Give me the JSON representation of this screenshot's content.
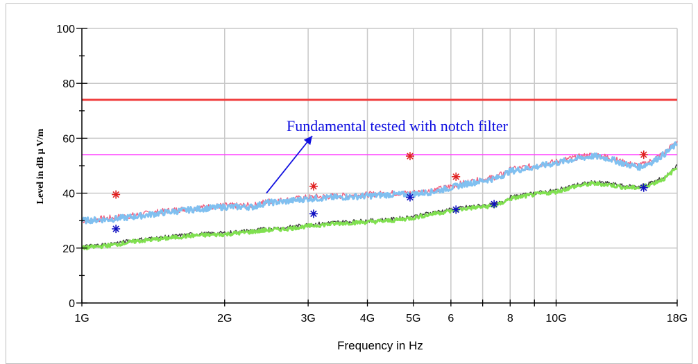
{
  "chart_data": {
    "type": "line",
    "xlabel": "Frequency in Hz",
    "ylabel": "Level in dB µ V/m",
    "x_scale": "log",
    "x_unit": "GHz",
    "xlim": [
      1,
      18
    ],
    "ylim": [
      0,
      100
    ],
    "grid": true,
    "x_ticks": [
      {
        "value": 1,
        "label": "1G"
      },
      {
        "value": 2,
        "label": "2G"
      },
      {
        "value": 3,
        "label": "3G"
      },
      {
        "value": 4,
        "label": "4G"
      },
      {
        "value": 5,
        "label": "5G"
      },
      {
        "value": 6,
        "label": "6"
      },
      {
        "value": 7,
        "label": ""
      },
      {
        "value": 8,
        "label": "8"
      },
      {
        "value": 9,
        "label": ""
      },
      {
        "value": 10,
        "label": "10G"
      },
      {
        "value": 18,
        "label": "18G"
      }
    ],
    "y_ticks": [
      0,
      20,
      40,
      60,
      80,
      100
    ],
    "annotation": {
      "text": "Fundamental tested with notch filter",
      "arrow_to_x": 2.45,
      "arrow_to_y": 40
    },
    "limit_lines": [
      {
        "y": 74,
        "color": "#f04040"
      },
      {
        "y": 54,
        "color": "#ff40ff"
      }
    ],
    "series": [
      {
        "role": "peak-hz",
        "color": "#f06080",
        "x": [
          1,
          1.15,
          1.3,
          1.5,
          1.7,
          2,
          2.3,
          2.45,
          2.7,
          3,
          3.5,
          4,
          4.5,
          4.9,
          5.5,
          6,
          6.5,
          7,
          7.5,
          8,
          9,
          10,
          11,
          12,
          13,
          14,
          15,
          16,
          17,
          18
        ],
        "y": [
          30,
          31,
          32,
          33.5,
          34.5,
          35.5,
          35.5,
          37,
          37.5,
          38.5,
          39,
          39.5,
          40,
          40,
          41,
          42.5,
          44,
          45,
          46,
          48.5,
          50,
          51.5,
          53,
          54,
          53,
          51,
          50,
          52,
          55,
          59
        ]
      },
      {
        "role": "peak-vt",
        "color": "#80c0f0",
        "x": [
          1,
          1.15,
          1.3,
          1.5,
          1.7,
          2,
          2.3,
          2.45,
          2.7,
          3,
          3.5,
          4,
          4.5,
          4.9,
          5.5,
          6,
          6.5,
          7,
          7.5,
          8,
          9,
          10,
          11,
          12,
          13,
          14,
          15,
          16,
          17,
          18
        ],
        "y": [
          30,
          30.5,
          31.5,
          33,
          34,
          35,
          35,
          36.5,
          37,
          38,
          38.5,
          39,
          39.5,
          39.5,
          40.5,
          42,
          43.5,
          44.5,
          45.5,
          48,
          49.5,
          51,
          52.5,
          53.5,
          52.5,
          50.5,
          49.5,
          51.5,
          54.5,
          58
        ]
      },
      {
        "role": "avg-hz",
        "color": "#404040",
        "x": [
          1,
          1.15,
          1.3,
          1.5,
          1.7,
          2,
          2.3,
          2.45,
          2.7,
          3,
          3.5,
          4,
          4.5,
          5,
          5.5,
          6,
          6.5,
          7,
          7.5,
          8,
          9,
          10,
          11,
          12,
          13,
          14,
          15,
          16,
          17,
          18
        ],
        "y": [
          20.5,
          21.5,
          23,
          24,
          25,
          25.5,
          26.5,
          27,
          27.5,
          28.5,
          29.5,
          30,
          30.5,
          31.5,
          33,
          34,
          35,
          35.5,
          36,
          38.5,
          40,
          41,
          43,
          44,
          43.5,
          42.5,
          42.5,
          44,
          46,
          50
        ]
      },
      {
        "role": "avg-vt",
        "color": "#80e050",
        "x": [
          1,
          1.15,
          1.3,
          1.5,
          1.7,
          2,
          2.3,
          2.45,
          2.7,
          3,
          3.5,
          4,
          4.5,
          5,
          5.5,
          6,
          6.5,
          7,
          7.5,
          8,
          9,
          10,
          11,
          12,
          13,
          14,
          15,
          16,
          17,
          18
        ],
        "y": [
          20,
          21,
          22.5,
          23.5,
          24.5,
          25,
          26,
          26.5,
          27,
          28,
          29,
          29.5,
          30,
          31,
          32.5,
          33.5,
          34.5,
          35,
          35.5,
          38,
          39.5,
          40.5,
          42.5,
          43.5,
          43,
          42,
          42,
          43.5,
          45.5,
          49.5
        ]
      }
    ],
    "markers": [
      {
        "color": "#e02020",
        "x": 1.18,
        "y": 39.5
      },
      {
        "color": "#e02020",
        "x": 3.08,
        "y": 42.5
      },
      {
        "color": "#e02020",
        "x": 4.92,
        "y": 53.5
      },
      {
        "color": "#e02020",
        "x": 6.15,
        "y": 46
      },
      {
        "color": "#e02020",
        "x": 15.3,
        "y": 54
      },
      {
        "color": "#1010c0",
        "x": 1.18,
        "y": 27
      },
      {
        "color": "#1010c0",
        "x": 3.08,
        "y": 32.5
      },
      {
        "color": "#1010c0",
        "x": 4.92,
        "y": 38.5
      },
      {
        "color": "#1010c0",
        "x": 6.15,
        "y": 34
      },
      {
        "color": "#1010c0",
        "x": 7.4,
        "y": 36
      },
      {
        "color": "#1010c0",
        "x": 15.3,
        "y": 42
      }
    ]
  }
}
